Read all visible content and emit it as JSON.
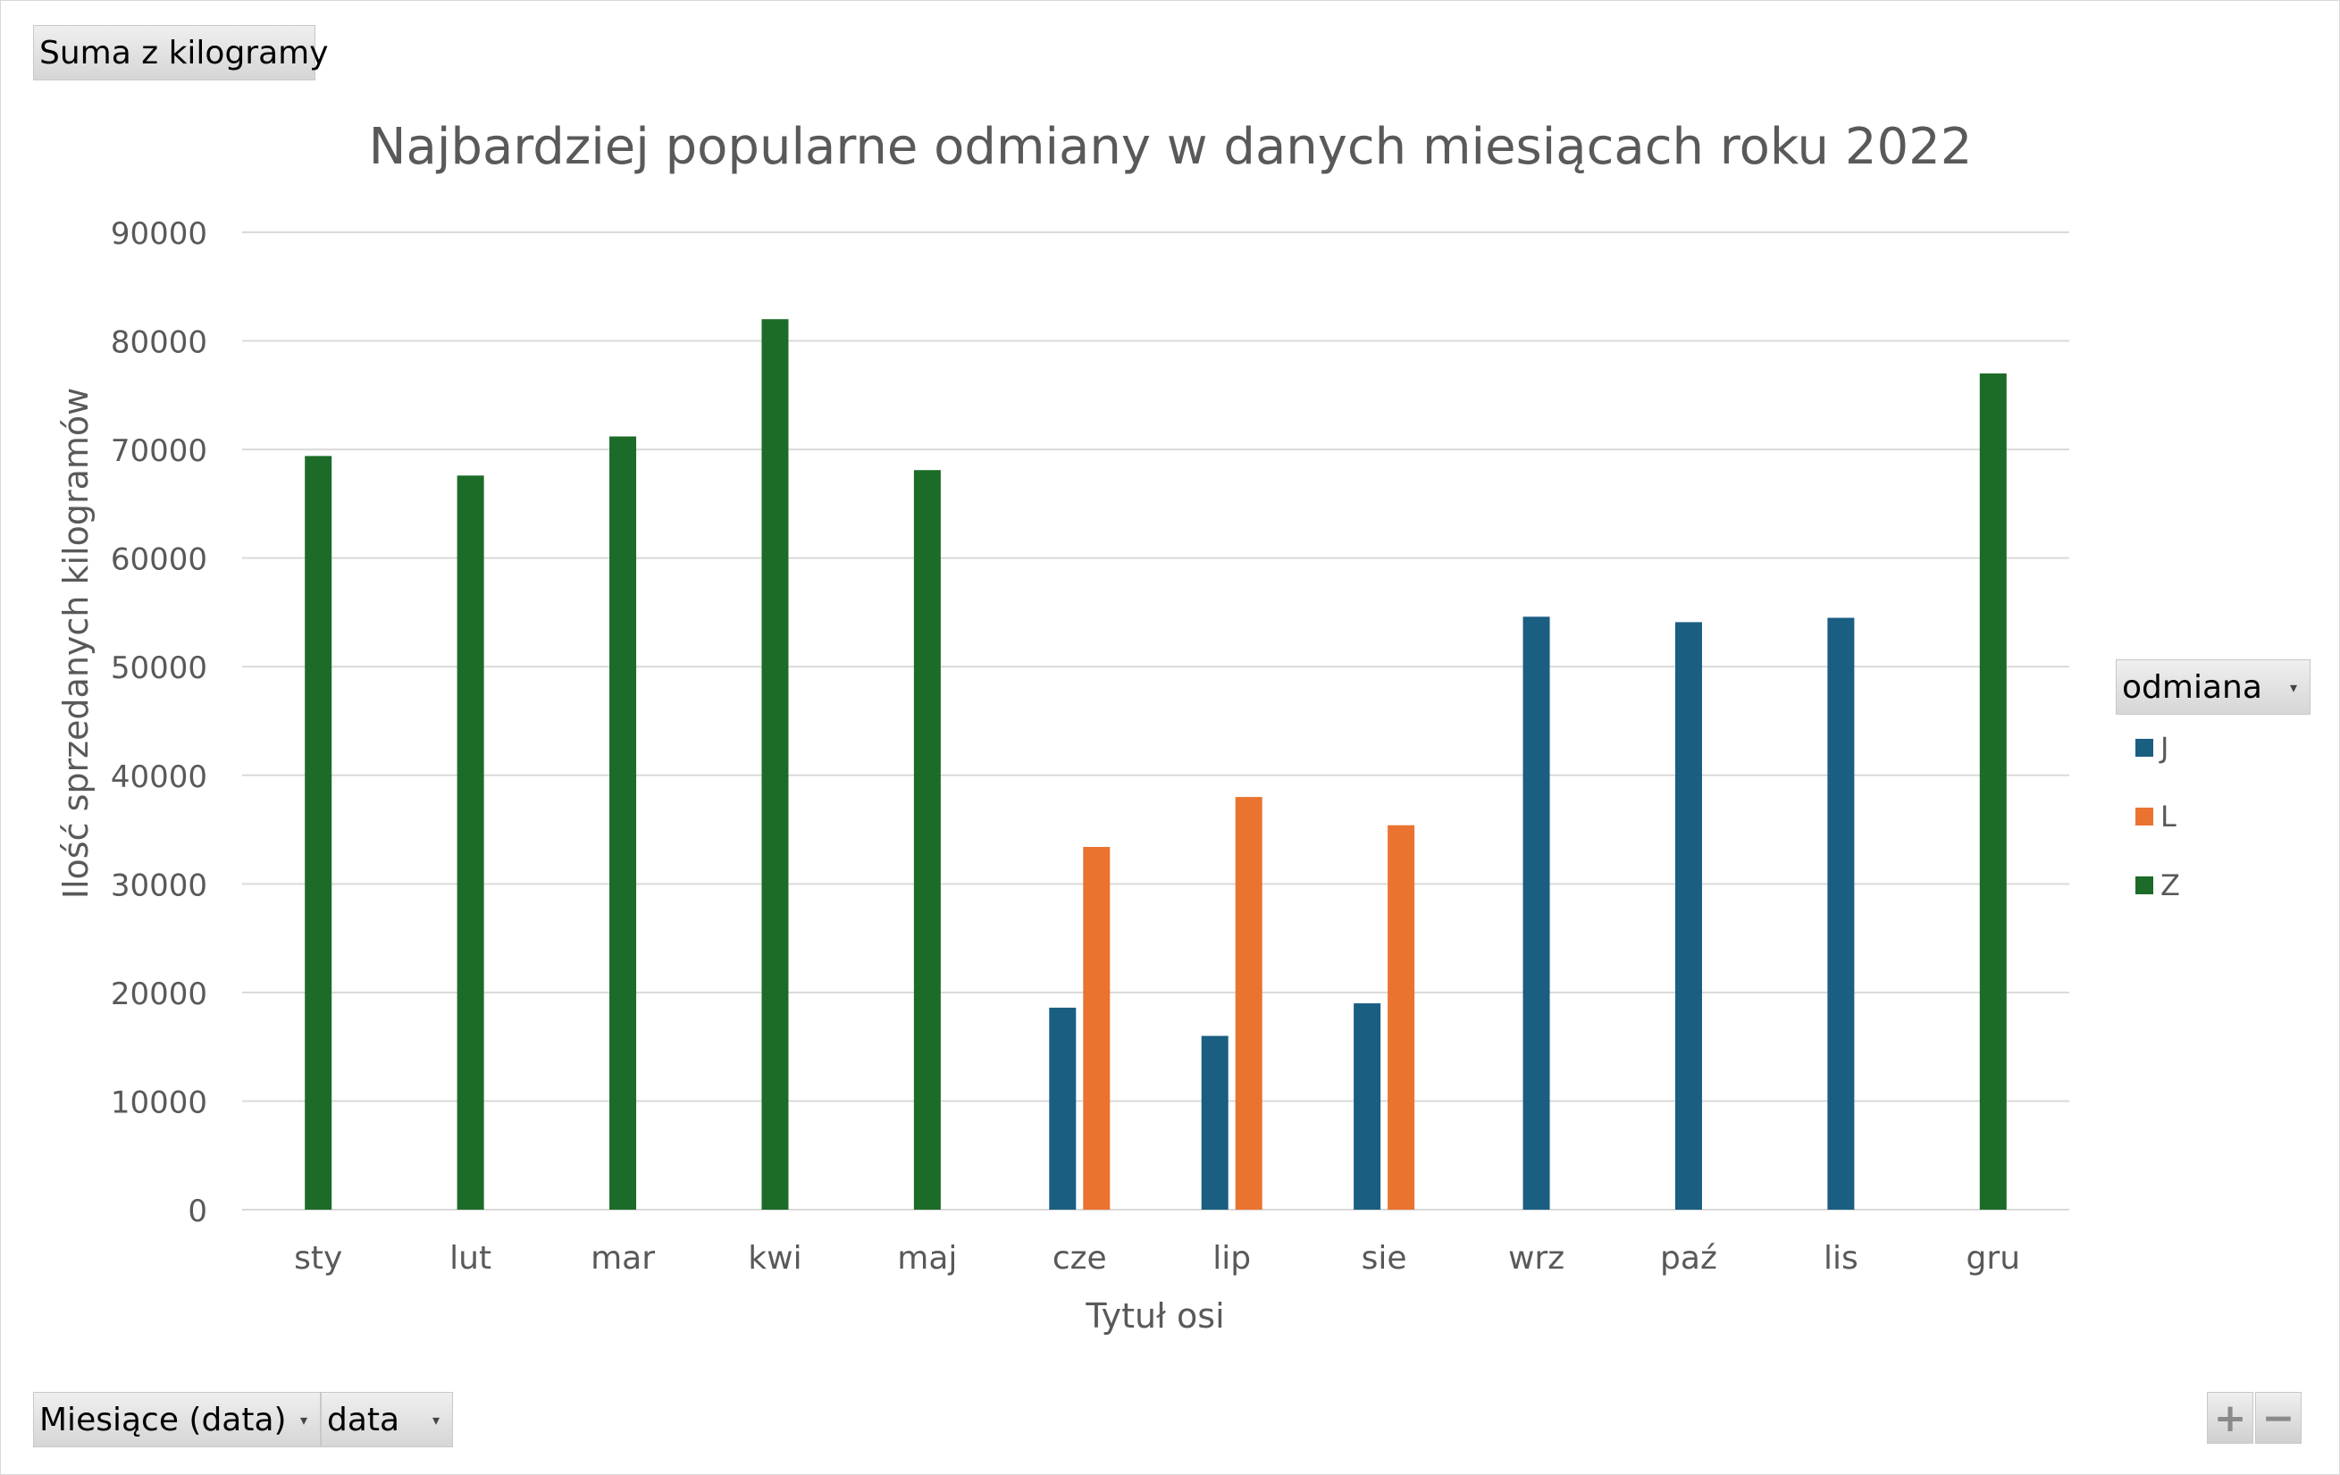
{
  "value_field_button": "Suma z kilogramy",
  "legend": {
    "field_button": "odmiana",
    "items": [
      {
        "label": "J",
        "color": "#1a5e82"
      },
      {
        "label": "L",
        "color": "#ea7330"
      },
      {
        "label": "Z",
        "color": "#1c6b28"
      }
    ]
  },
  "axis_field_buttons": [
    "Miesiące (data)",
    "data"
  ],
  "zoom": {
    "plus": "+",
    "minus": "−"
  },
  "chart_data": {
    "type": "bar",
    "title": "Najbardziej popularne odmiany w danych miesiącach roku 2022",
    "xlabel": "Tytuł osi",
    "ylabel": "Ilość sprzedanych kilogramów",
    "ylim": [
      0,
      90000
    ],
    "yticks": [
      0,
      10000,
      20000,
      30000,
      40000,
      50000,
      60000,
      70000,
      80000,
      90000
    ],
    "grid": true,
    "legend_position": "right",
    "categories": [
      "sty",
      "lut",
      "mar",
      "kwi",
      "maj",
      "cze",
      "lip",
      "sie",
      "wrz",
      "paź",
      "lis",
      "gru"
    ],
    "series": [
      {
        "name": "J",
        "color": "#1a5e82",
        "values": [
          null,
          null,
          null,
          null,
          null,
          18600,
          16000,
          19000,
          54600,
          54100,
          54500,
          null
        ]
      },
      {
        "name": "L",
        "color": "#ea7330",
        "values": [
          null,
          null,
          null,
          null,
          null,
          33400,
          38000,
          35400,
          null,
          null,
          null,
          null
        ]
      },
      {
        "name": "Z",
        "color": "#1c6b28",
        "values": [
          69400,
          67600,
          71200,
          82000,
          68100,
          null,
          null,
          null,
          null,
          null,
          null,
          77000
        ]
      }
    ]
  }
}
